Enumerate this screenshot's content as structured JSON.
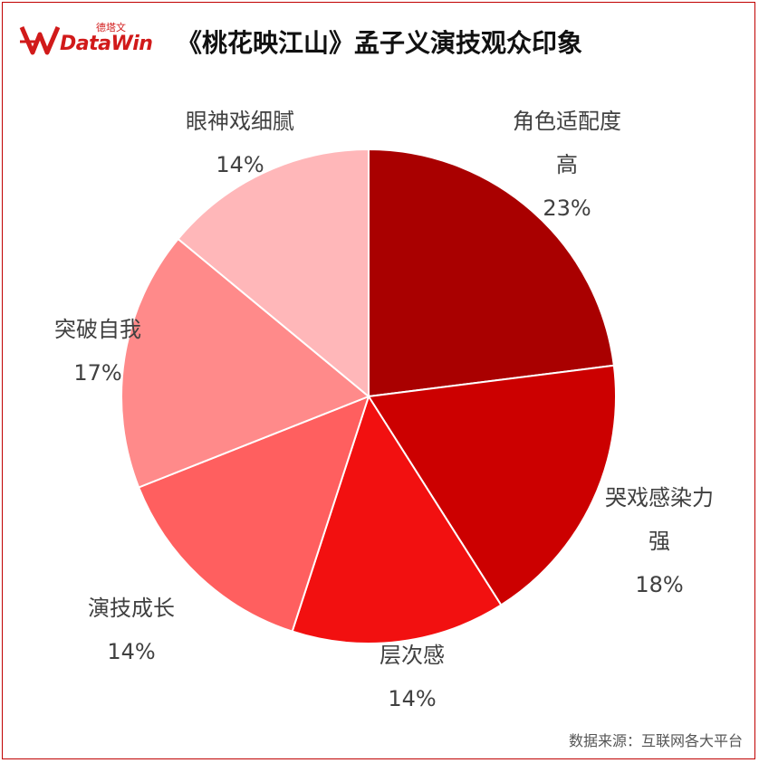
{
  "header": {
    "brand_cn": "德塔文",
    "brand_en": "DataWin",
    "title": "《桃花映江山》孟子义演技观众印象"
  },
  "chart_data": {
    "type": "pie",
    "title": "《桃花映江山》孟子义演技观众印象",
    "start": "top",
    "direction": "clockwise",
    "slices": [
      {
        "label": [
          "角色适配度",
          "高"
        ],
        "value": 23,
        "pct": "23%",
        "color": "#a90000"
      },
      {
        "label": [
          "哭戏感染力",
          "强"
        ],
        "value": 18,
        "pct": "18%",
        "color": "#cc0000"
      },
      {
        "label": [
          "层次感"
        ],
        "value": 14,
        "pct": "14%",
        "color": "#f21010"
      },
      {
        "label": [
          "演技成长"
        ],
        "value": 14,
        "pct": "14%",
        "color": "#ff5f5f"
      },
      {
        "label": [
          "突破自我"
        ],
        "value": 17,
        "pct": "17%",
        "color": "#ff8a8a"
      },
      {
        "label": [
          "眼神戏细腻"
        ],
        "value": 14,
        "pct": "14%",
        "color": "#ffb7b9"
      }
    ]
  },
  "footer": {
    "source": "数据来源：互联网各大平台"
  }
}
